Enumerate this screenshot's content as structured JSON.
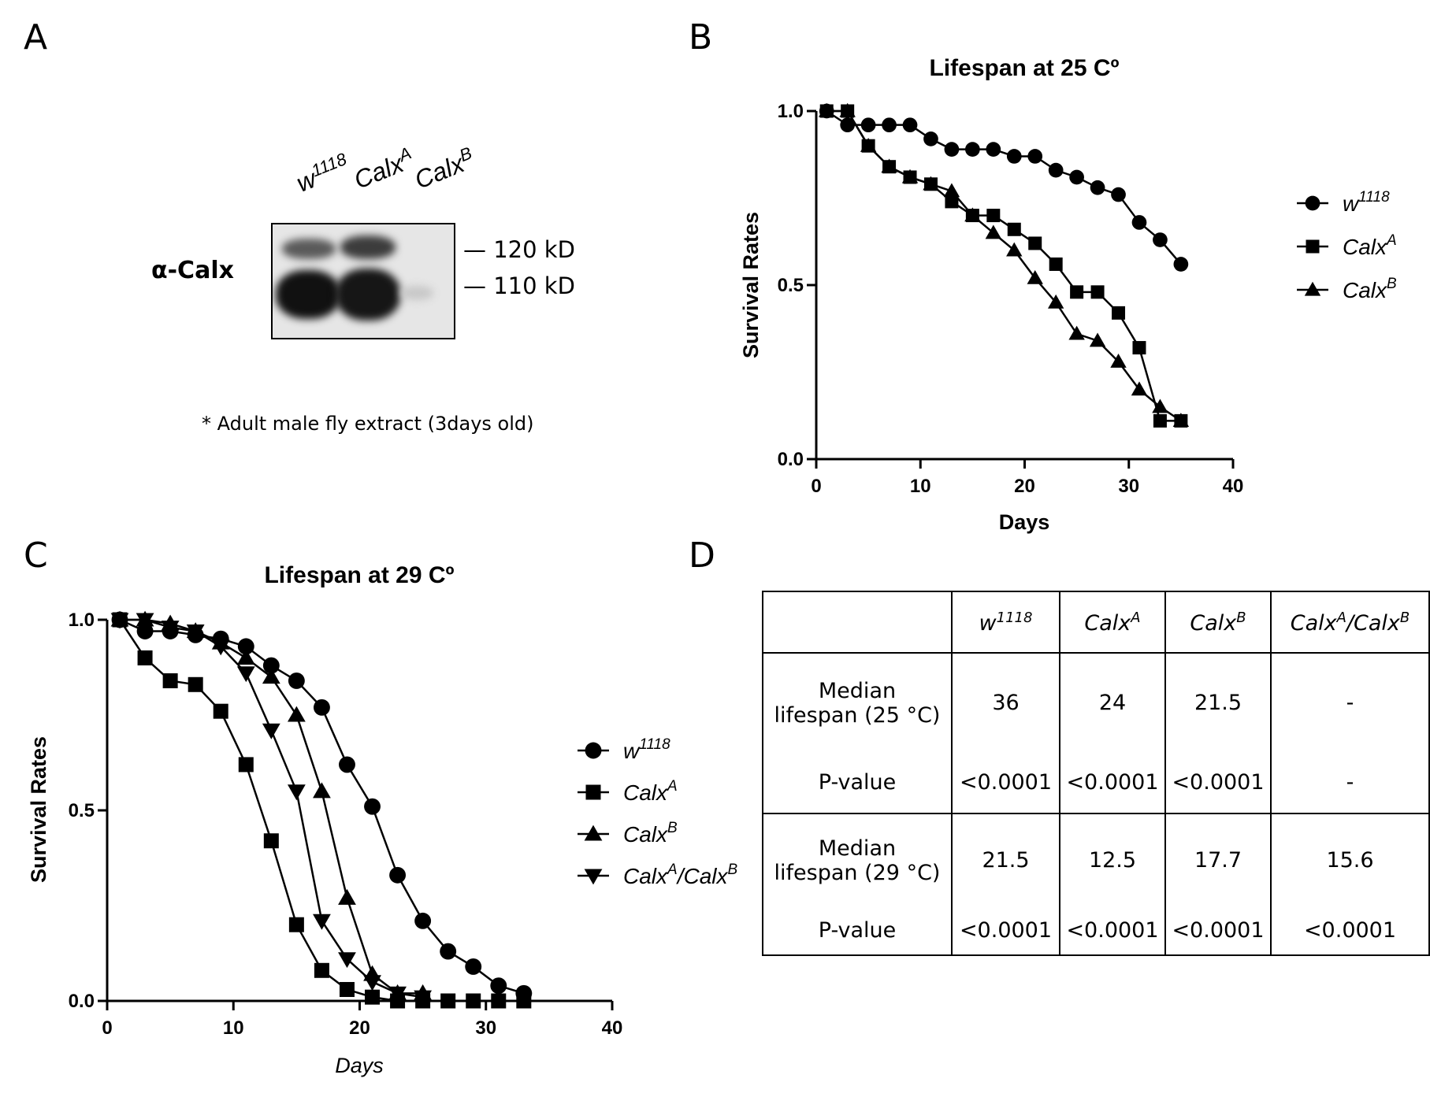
{
  "panels": {
    "a": "A",
    "b": "B",
    "c": "C",
    "d": "D"
  },
  "western": {
    "lanes": [
      {
        "base": "w",
        "sup": "1118"
      },
      {
        "base": "Calx",
        "sup": "A"
      },
      {
        "base": "Calx",
        "sup": "B"
      }
    ],
    "antibody": "α-Calx",
    "marker_120": "— 120 kD",
    "marker_110": "— 110 kD",
    "note": "* Adult male fly extract (3days old)"
  },
  "chart_data": [
    {
      "type": "line",
      "title": "Lifespan at 25 Cº",
      "xlabel": "Days",
      "ylabel": "Survival Rates",
      "xlim": [
        0,
        40
      ],
      "ylim": [
        0,
        1
      ],
      "xticks": [
        "0",
        "10",
        "20",
        "30",
        "40"
      ],
      "yticks": [
        "0.0",
        "0.5",
        "1.0"
      ],
      "legend": "right",
      "series": [
        {
          "name": "w1118",
          "label_base": "w",
          "label_sup": "1118",
          "marker": "circle",
          "x": [
            1,
            3,
            5,
            7,
            9,
            11,
            13,
            15,
            17,
            19,
            21,
            23,
            25,
            27,
            29,
            31,
            33,
            35
          ],
          "y": [
            1.0,
            0.96,
            0.96,
            0.96,
            0.96,
            0.92,
            0.89,
            0.89,
            0.89,
            0.87,
            0.87,
            0.83,
            0.81,
            0.78,
            0.76,
            0.68,
            0.63,
            0.56
          ]
        },
        {
          "name": "CalxA",
          "label_base": "Calx",
          "label_sup": "A",
          "marker": "square",
          "x": [
            1,
            3,
            5,
            7,
            9,
            11,
            13,
            15,
            17,
            19,
            21,
            23,
            25,
            27,
            29,
            31,
            33,
            35
          ],
          "y": [
            1.0,
            1.0,
            0.9,
            0.84,
            0.81,
            0.79,
            0.74,
            0.7,
            0.7,
            0.66,
            0.62,
            0.56,
            0.48,
            0.48,
            0.42,
            0.32,
            0.11,
            0.11
          ]
        },
        {
          "name": "CalxB",
          "label_base": "Calx",
          "label_sup": "B",
          "marker": "triangle",
          "x": [
            1,
            3,
            5,
            7,
            9,
            11,
            13,
            15,
            17,
            19,
            21,
            23,
            25,
            27,
            29,
            31,
            33,
            35
          ],
          "y": [
            1.0,
            1.0,
            0.9,
            0.84,
            0.81,
            0.79,
            0.77,
            0.7,
            0.65,
            0.6,
            0.52,
            0.45,
            0.36,
            0.34,
            0.28,
            0.2,
            0.15,
            0.11
          ]
        }
      ]
    },
    {
      "type": "line",
      "title": "Lifespan at 29 Cº",
      "xlabel": "Days",
      "ylabel": "Survival Rates",
      "xlim": [
        0,
        40
      ],
      "ylim": [
        0,
        1
      ],
      "xticks": [
        "0",
        "10",
        "20",
        "30",
        "40"
      ],
      "yticks": [
        "0.0",
        "0.5",
        "1.0"
      ],
      "legend": "right",
      "series": [
        {
          "name": "w1118",
          "label_base": "w",
          "label_sup": "1118",
          "marker": "circle",
          "x": [
            1,
            3,
            5,
            7,
            9,
            11,
            13,
            15,
            17,
            19,
            21,
            23,
            25,
            27,
            29,
            31,
            33
          ],
          "y": [
            1.0,
            0.97,
            0.97,
            0.96,
            0.95,
            0.93,
            0.88,
            0.84,
            0.77,
            0.62,
            0.51,
            0.33,
            0.21,
            0.13,
            0.09,
            0.04,
            0.02
          ]
        },
        {
          "name": "CalxA",
          "label_base": "Calx",
          "label_sup": "A",
          "marker": "square",
          "x": [
            1,
            3,
            5,
            7,
            9,
            11,
            13,
            15,
            17,
            19,
            21,
            23,
            25,
            27,
            29,
            31,
            33
          ],
          "y": [
            1.0,
            0.9,
            0.84,
            0.83,
            0.76,
            0.62,
            0.42,
            0.2,
            0.08,
            0.03,
            0.01,
            0.0,
            0.0,
            0.0,
            0.0,
            0.0,
            0.0
          ]
        },
        {
          "name": "CalxB",
          "label_base": "Calx",
          "label_sup": "B",
          "marker": "triangle",
          "x": [
            1,
            3,
            5,
            7,
            9,
            11,
            13,
            15,
            17,
            19,
            21,
            23,
            25
          ],
          "y": [
            1.0,
            1.0,
            0.99,
            0.97,
            0.94,
            0.9,
            0.85,
            0.75,
            0.55,
            0.27,
            0.07,
            0.02,
            0.02
          ]
        },
        {
          "name": "CalxA/CalxB",
          "label_base": "Calx",
          "label_sup": "A",
          "label_mid": "/Calx",
          "label_sup2": "B",
          "marker": "triangle-down",
          "x": [
            1,
            3,
            5,
            7,
            9,
            11,
            13,
            15,
            17,
            19,
            21,
            23,
            25
          ],
          "y": [
            1.0,
            1.0,
            0.98,
            0.97,
            0.93,
            0.86,
            0.71,
            0.55,
            0.21,
            0.11,
            0.05,
            0.02,
            0.01
          ]
        }
      ]
    }
  ],
  "table": {
    "headers": [
      {
        "base": "",
        "sup": ""
      },
      {
        "base": "w",
        "sup": "1118"
      },
      {
        "base": "Calx",
        "sup": "A"
      },
      {
        "base": "Calx",
        "sup": "B"
      },
      {
        "base": "Calx",
        "sup": "A",
        "mid": "/Calx",
        "sup2": "B"
      }
    ],
    "rows": [
      {
        "label_1": "Median",
        "label_2": "lifespan (25 °C)",
        "values": [
          "36",
          "24",
          "21.5",
          "-"
        ]
      },
      {
        "label_1": "P-value",
        "label_2": "",
        "values": [
          "<0.0001",
          "<0.0001",
          "<0.0001",
          "-"
        ]
      },
      {
        "label_1": "Median",
        "label_2": "lifespan (29 °C)",
        "values": [
          "21.5",
          "12.5",
          "17.7",
          "15.6"
        ]
      },
      {
        "label_1": "P-value",
        "label_2": "",
        "values": [
          "<0.0001",
          "<0.0001",
          "<0.0001",
          "<0.0001"
        ]
      }
    ]
  }
}
